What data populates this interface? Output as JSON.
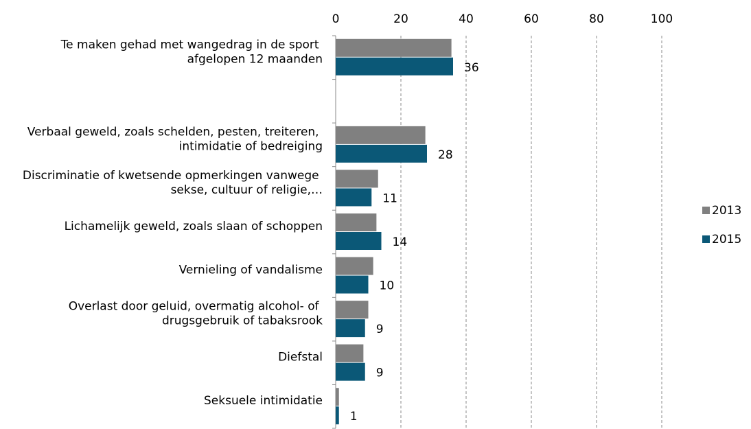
{
  "chart_data": {
    "type": "barh",
    "categories": [
      "Te maken gehad met wangedrag in de sport afgelopen 12 maanden",
      null,
      "Verbaal geweld, zoals schelden, pesten, treiteren, intimidatie of bedreiging",
      "Discriminatie of kwetsende opmerkingen vanwege sekse, cultuur of religie,…",
      "Lichamelijk geweld, zoals slaan of schoppen",
      "Vernieling of vandalisme",
      "Overlast door geluid, overmatig alcohol- of drugsgebruik of tabaksrook",
      "Diefstal",
      "Seksuele intimidatie"
    ],
    "series": [
      {
        "name": "2013",
        "color": "#808080",
        "values": [
          35.5,
          null,
          27.5,
          13,
          12.5,
          11.5,
          10,
          8.5,
          1
        ]
      },
      {
        "name": "2015",
        "color": "#0b5877",
        "values": [
          36,
          null,
          28,
          11,
          14,
          10,
          9,
          9,
          1
        ],
        "data_labels": true
      }
    ],
    "xlim": [
      0,
      100
    ],
    "xticks": [
      0,
      20,
      40,
      60,
      80,
      100
    ],
    "grid": true,
    "legend": "right"
  }
}
